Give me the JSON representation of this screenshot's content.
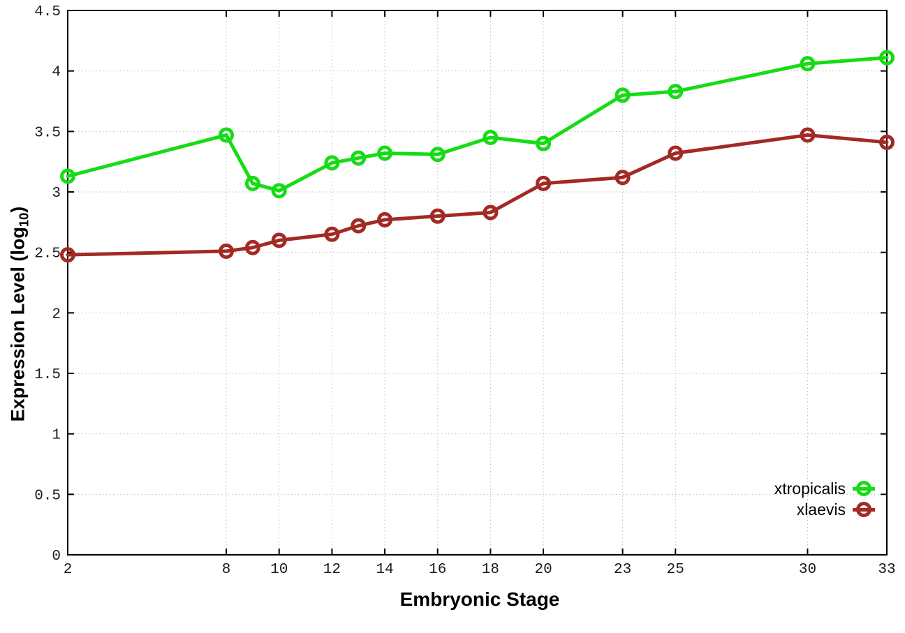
{
  "chart_data": {
    "type": "line",
    "title": "",
    "xlabel": "Embryonic Stage",
    "ylabel": {
      "main": "Expression Level (log",
      "sub": "10",
      "close": ")"
    },
    "x": [
      2,
      8,
      9,
      10,
      12,
      13,
      14,
      16,
      18,
      20,
      23,
      25,
      30,
      33
    ],
    "series": [
      {
        "name": "xtropicalis",
        "color": "#15dc15",
        "values": [
          3.13,
          3.47,
          3.07,
          3.01,
          3.24,
          3.28,
          3.32,
          3.31,
          3.45,
          3.4,
          3.8,
          3.83,
          4.06,
          4.11
        ]
      },
      {
        "name": "xlaevis",
        "color": "#a22a25",
        "values": [
          2.48,
          2.51,
          2.54,
          2.6,
          2.65,
          2.72,
          2.77,
          2.8,
          2.83,
          3.07,
          3.12,
          3.32,
          3.47,
          3.41
        ]
      }
    ],
    "xlim": [
      2,
      33
    ],
    "ylim": [
      0,
      4.5
    ],
    "xticks": [
      "2",
      "8",
      "10",
      "12",
      "14",
      "16",
      "18",
      "20",
      "23",
      "25",
      "30",
      "33"
    ],
    "yticks": [
      "0",
      "0.5",
      "1",
      "1.5",
      "2",
      "2.5",
      "3",
      "3.5",
      "4",
      "4.5"
    ],
    "grid": true,
    "grid_color": "#bdbdbd",
    "border_color": "#000000",
    "legend_position": "bottom-right",
    "marker": "open-circle"
  }
}
